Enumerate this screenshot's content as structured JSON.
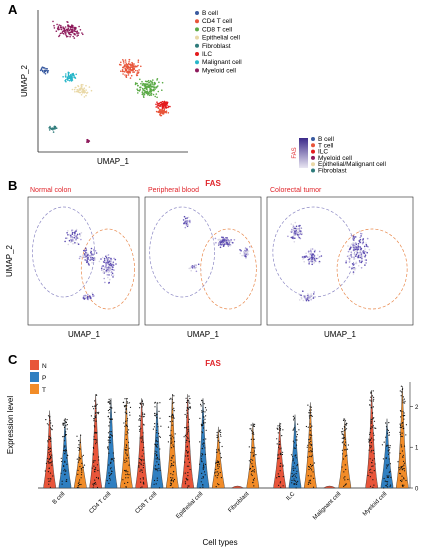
{
  "panels": {
    "A": {
      "label": "A",
      "xlabel": "UMAP_1",
      "ylabel": "UMAP_2",
      "legend": [
        {
          "name": "B cell",
          "color": "#3a5ba0"
        },
        {
          "name": "CD4 T cell",
          "color": "#e8553a"
        },
        {
          "name": "CD8 T cell",
          "color": "#5aaa46"
        },
        {
          "name": "Epithelial cell",
          "color": "#e9d8a6"
        },
        {
          "name": "Fibroblast",
          "color": "#2e7b7b"
        },
        {
          "name": "ILC",
          "color": "#e31a1c"
        },
        {
          "name": "Malignant cell",
          "color": "#27b6c9"
        },
        {
          "name": "Myeloid cell",
          "color": "#8e1b5c"
        }
      ]
    },
    "B": {
      "label": "B",
      "title": "FAS",
      "xlabel": "UMAP_1",
      "ylabel": "UMAP_2",
      "colorbar_label": "FAS",
      "subpanels": [
        {
          "title": "Normal colon"
        },
        {
          "title": "Peripheral blood"
        },
        {
          "title": "Colorectal tumor"
        }
      ],
      "legend": [
        {
          "name": "B cell",
          "color": "#3a5ba0"
        },
        {
          "name": "T cell",
          "color": "#e8553a"
        },
        {
          "name": "ILC",
          "color": "#e31a1c"
        },
        {
          "name": "Myeloid cell",
          "color": "#8e1b5c"
        },
        {
          "name": "Epithelial/Malignant cell",
          "color": "#e9d8a6"
        },
        {
          "name": "Fibroblast",
          "color": "#2e7b7b"
        }
      ]
    }
  },
  "chart_data": {
    "type": "violin",
    "label": "C",
    "title": "FAS",
    "xlabel": "Cell types",
    "ylabel": "Expression level",
    "ylim": [
      0,
      2.6
    ],
    "yticks": [
      0,
      1,
      2
    ],
    "categories": [
      "B cell",
      "CD4 T cell",
      "CD8 T cell",
      "Epithelial cell",
      "Fibroblast",
      "ILC",
      "Malignant cell",
      "Myeloid cell"
    ],
    "series": [
      {
        "name": "N",
        "color": "#e8553a"
      },
      {
        "name": "P",
        "color": "#2f7fc1"
      },
      {
        "name": "T",
        "color": "#f28c28"
      }
    ],
    "violins": [
      {
        "category": "B cell",
        "group": "N",
        "max": 1.9
      },
      {
        "category": "B cell",
        "group": "P",
        "max": 1.7
      },
      {
        "category": "B cell",
        "group": "T",
        "max": 1.3
      },
      {
        "category": "CD4 T cell",
        "group": "N",
        "max": 2.3
      },
      {
        "category": "CD4 T cell",
        "group": "P",
        "max": 2.2
      },
      {
        "category": "CD4 T cell",
        "group": "T",
        "max": 2.2
      },
      {
        "category": "CD8 T cell",
        "group": "N",
        "max": 2.2
      },
      {
        "category": "CD8 T cell",
        "group": "P",
        "max": 2.1
      },
      {
        "category": "CD8 T cell",
        "group": "T",
        "max": 2.3
      },
      {
        "category": "Epithelial cell",
        "group": "N",
        "max": 2.3
      },
      {
        "category": "Epithelial cell",
        "group": "P",
        "max": 2.2
      },
      {
        "category": "Epithelial cell",
        "group": "T",
        "max": 1.5
      },
      {
        "category": "Fibroblast",
        "group": "N",
        "max": 0
      },
      {
        "category": "Fibroblast",
        "group": "T",
        "max": 1.6
      },
      {
        "category": "ILC",
        "group": "N",
        "max": 1.6
      },
      {
        "category": "ILC",
        "group": "P",
        "max": 1.8
      },
      {
        "category": "ILC",
        "group": "T",
        "max": 2.1
      },
      {
        "category": "Malignant cell",
        "group": "N",
        "max": 0
      },
      {
        "category": "Malignant cell",
        "group": "T",
        "max": 1.7
      },
      {
        "category": "Myeloid cell",
        "group": "N",
        "max": 2.4
      },
      {
        "category": "Myeloid cell",
        "group": "P",
        "max": 1.7
      },
      {
        "category": "Myeloid cell",
        "group": "T",
        "max": 2.5
      }
    ]
  }
}
